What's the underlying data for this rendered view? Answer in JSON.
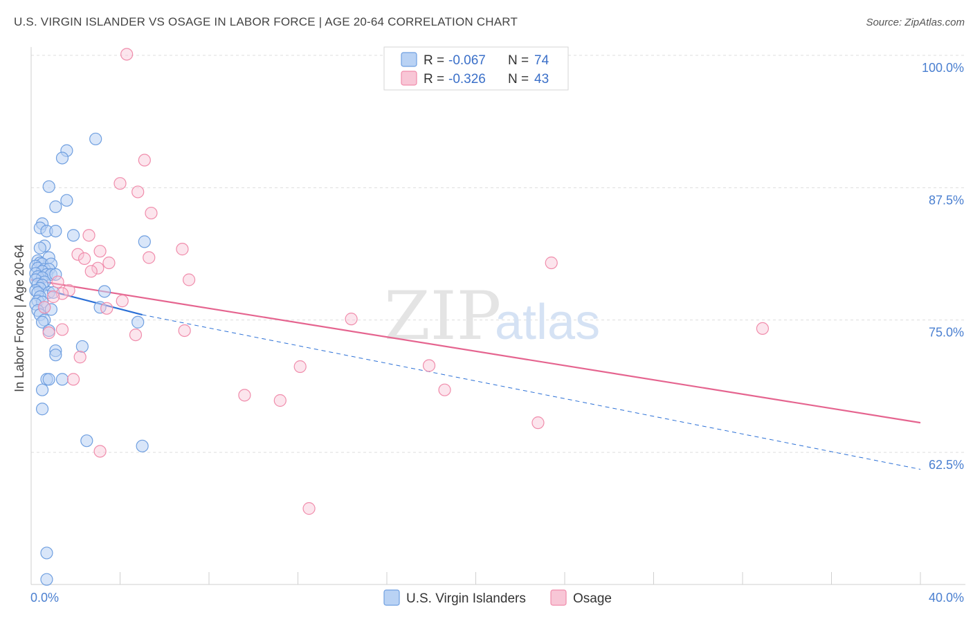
{
  "header": {
    "title": "U.S. VIRGIN ISLANDER VS OSAGE IN LABOR FORCE | AGE 20-64 CORRELATION CHART",
    "source": "Source: ZipAtlas.com"
  },
  "watermark": {
    "zip": "ZIP",
    "atlas": "atlas"
  },
  "legend": {
    "rows": [
      {
        "r_label": "R =",
        "r_value": "-0.067",
        "n_label": "N =",
        "n_value": "74"
      },
      {
        "r_label": "R =",
        "r_value": "-0.326",
        "n_label": "N =",
        "n_value": "43"
      }
    ]
  },
  "colors": {
    "series1": "#6f9fe0",
    "series1_fill": "#b9d2f4",
    "series1_line": "#2a6fd6",
    "series2": "#f08cab",
    "series2_fill": "#f8c6d6",
    "series2_line": "#e5648f",
    "tick_text": "#4a7fd0",
    "grid": "#dddddd"
  },
  "chart_data": {
    "type": "scatter",
    "title": "U.S. VIRGIN ISLANDER VS OSAGE IN LABOR FORCE | AGE 20-64 CORRELATION CHART",
    "xlabel": "",
    "ylabel": "In Labor Force | Age 20-64",
    "xlim": [
      0,
      40
    ],
    "ylim": [
      50,
      101
    ],
    "x_tick_labels": [
      "0.0%",
      "40.0%"
    ],
    "y_ticks": [
      100,
      87.5,
      75,
      62.5
    ],
    "y_tick_labels": [
      "100.0%",
      "87.5%",
      "75.0%",
      "62.5%"
    ],
    "series": [
      {
        "name": "U.S. Virgin Islanders",
        "r": -0.067,
        "n": 74,
        "trend": {
          "x": [
            0,
            5.0
          ],
          "y": [
            78.2,
            75.5
          ]
        },
        "trend_ext": {
          "x": [
            5.0,
            40.0
          ],
          "y": [
            75.5,
            60.9
          ]
        },
        "points": [
          [
            2.9,
            92.1
          ],
          [
            1.6,
            91.0
          ],
          [
            1.4,
            90.3
          ],
          [
            0.8,
            87.6
          ],
          [
            1.6,
            86.3
          ],
          [
            1.1,
            85.7
          ],
          [
            0.5,
            84.1
          ],
          [
            0.4,
            83.7
          ],
          [
            0.7,
            83.4
          ],
          [
            1.1,
            83.4
          ],
          [
            1.9,
            83.0
          ],
          [
            5.1,
            82.4
          ],
          [
            0.6,
            82.0
          ],
          [
            0.4,
            81.8
          ],
          [
            0.8,
            80.9
          ],
          [
            0.3,
            80.6
          ],
          [
            0.4,
            80.4
          ],
          [
            0.5,
            80.3
          ],
          [
            0.9,
            80.3
          ],
          [
            0.2,
            80.1
          ],
          [
            0.3,
            79.9
          ],
          [
            0.6,
            79.8
          ],
          [
            0.8,
            79.8
          ],
          [
            0.5,
            79.6
          ],
          [
            0.2,
            79.4
          ],
          [
            0.7,
            79.3
          ],
          [
            0.9,
            79.3
          ],
          [
            1.1,
            79.3
          ],
          [
            0.3,
            79.1
          ],
          [
            0.5,
            79.0
          ],
          [
            0.2,
            78.8
          ],
          [
            0.6,
            78.6
          ],
          [
            0.3,
            78.4
          ],
          [
            0.5,
            78.3
          ],
          [
            0.4,
            78.0
          ],
          [
            0.2,
            77.8
          ],
          [
            0.3,
            77.6
          ],
          [
            0.8,
            77.6
          ],
          [
            1.0,
            77.6
          ],
          [
            3.3,
            77.7
          ],
          [
            0.4,
            77.2
          ],
          [
            0.3,
            76.8
          ],
          [
            0.5,
            76.7
          ],
          [
            0.2,
            76.5
          ],
          [
            0.6,
            76.2
          ],
          [
            0.9,
            76.0
          ],
          [
            3.1,
            76.2
          ],
          [
            0.3,
            75.9
          ],
          [
            0.4,
            75.5
          ],
          [
            0.6,
            75.0
          ],
          [
            0.5,
            74.8
          ],
          [
            4.8,
            74.8
          ],
          [
            0.8,
            74.0
          ],
          [
            2.3,
            72.5
          ],
          [
            1.1,
            72.1
          ],
          [
            1.1,
            71.7
          ],
          [
            0.7,
            69.4
          ],
          [
            0.8,
            69.4
          ],
          [
            1.4,
            69.4
          ],
          [
            0.5,
            68.4
          ],
          [
            0.5,
            66.6
          ],
          [
            2.5,
            63.6
          ],
          [
            5.0,
            63.1
          ],
          [
            0.7,
            53.0
          ],
          [
            0.7,
            50.5
          ]
        ]
      },
      {
        "name": "Osage",
        "r": -0.326,
        "n": 43,
        "trend": {
          "x": [
            0,
            40.0
          ],
          "y": [
            78.8,
            65.3
          ]
        },
        "points": [
          [
            4.3,
            100.1
          ],
          [
            5.1,
            90.1
          ],
          [
            4.0,
            87.9
          ],
          [
            4.8,
            87.1
          ],
          [
            5.4,
            85.1
          ],
          [
            2.6,
            83.0
          ],
          [
            6.8,
            81.7
          ],
          [
            3.1,
            81.5
          ],
          [
            2.1,
            81.2
          ],
          [
            5.3,
            80.9
          ],
          [
            2.4,
            80.8
          ],
          [
            3.5,
            80.4
          ],
          [
            23.4,
            80.4
          ],
          [
            3.0,
            79.9
          ],
          [
            2.7,
            79.6
          ],
          [
            7.1,
            78.8
          ],
          [
            1.2,
            78.6
          ],
          [
            1.7,
            77.8
          ],
          [
            1.4,
            77.5
          ],
          [
            1.0,
            77.2
          ],
          [
            4.1,
            76.8
          ],
          [
            3.4,
            76.1
          ],
          [
            0.6,
            76.2
          ],
          [
            14.4,
            75.1
          ],
          [
            32.9,
            74.2
          ],
          [
            6.9,
            74.0
          ],
          [
            1.4,
            74.1
          ],
          [
            4.7,
            73.6
          ],
          [
            0.8,
            73.8
          ],
          [
            2.2,
            71.5
          ],
          [
            12.1,
            70.6
          ],
          [
            17.9,
            70.7
          ],
          [
            1.9,
            69.4
          ],
          [
            18.6,
            68.4
          ],
          [
            9.6,
            67.9
          ],
          [
            11.2,
            67.4
          ],
          [
            22.8,
            65.3
          ],
          [
            3.1,
            62.6
          ],
          [
            12.5,
            57.2
          ]
        ]
      }
    ]
  }
}
